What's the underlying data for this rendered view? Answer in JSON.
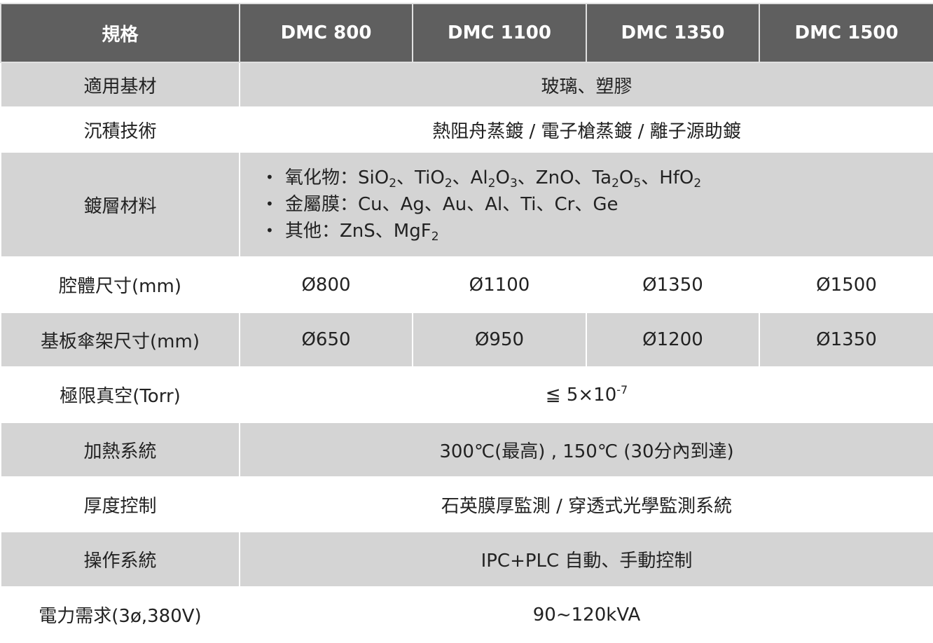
{
  "header": {
    "spec": "規格",
    "models": [
      "DMC 800",
      "DMC 1100",
      "DMC 1350",
      "DMC 1500"
    ]
  },
  "rows": {
    "substrate": {
      "label": "適用基材",
      "value": "玻璃、塑膠"
    },
    "deposition": {
      "label": "沉積技術",
      "value": "熱阻舟蒸鍍 / 電子槍蒸鍍 / 離子源助鍍"
    },
    "coating": {
      "label": "鍍層材料",
      "items": [
        [
          {
            "t": "氧化物：SiO"
          },
          {
            "t": "2",
            "sub": true
          },
          {
            "t": "、TiO"
          },
          {
            "t": "2",
            "sub": true
          },
          {
            "t": "、Al"
          },
          {
            "t": "2",
            "sub": true
          },
          {
            "t": "O"
          },
          {
            "t": "3",
            "sub": true
          },
          {
            "t": "、ZnO、Ta"
          },
          {
            "t": "2",
            "sub": true
          },
          {
            "t": "O"
          },
          {
            "t": "5",
            "sub": true
          },
          {
            "t": "、HfO"
          },
          {
            "t": "2",
            "sub": true
          }
        ],
        [
          {
            "t": "金屬膜：Cu、Ag、Au、Al、Ti、Cr、Ge"
          }
        ],
        [
          {
            "t": "其他：ZnS、MgF"
          },
          {
            "t": "2",
            "sub": true
          }
        ]
      ]
    },
    "chamber": {
      "label": "腔體尺寸(mm)",
      "values": [
        "Ø800",
        "Ø1100",
        "Ø1350",
        "Ø1500"
      ]
    },
    "holder": {
      "label": "基板傘架尺寸(mm)",
      "values": [
        "Ø650",
        "Ø950",
        "Ø1200",
        "Ø1350"
      ]
    },
    "vacuum": {
      "label": "極限真空(Torr)",
      "value": "≦ 5×10",
      "exp": "-7"
    },
    "heating": {
      "label": "加熱系統",
      "value": "300℃(最高) , 150℃ (30分內到達)"
    },
    "thickness": {
      "label": "厚度控制",
      "value": "石英膜厚監測 / 穿透式光學監測系統"
    },
    "operation": {
      "label": "操作系統",
      "value": "IPC+PLC 自動、手動控制"
    },
    "power": {
      "label": "電力需求(3ø,380V)",
      "value": "90~120kVA"
    }
  }
}
